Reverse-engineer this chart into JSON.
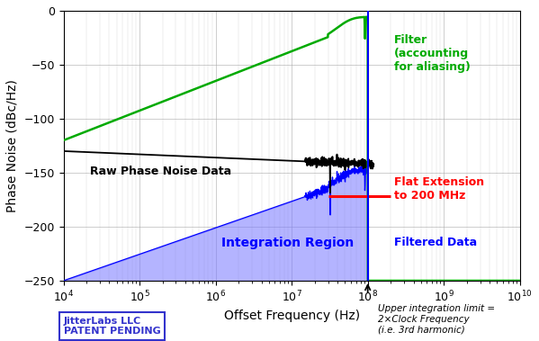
{
  "xlabel": "Offset Frequency (Hz)",
  "ylabel": "Phase Noise (dBc/Hz)",
  "xlim": [
    10000.0,
    10000000000.0
  ],
  "ylim": [
    -250,
    0
  ],
  "yticks": [
    0,
    -50,
    -100,
    -150,
    -200,
    -250
  ],
  "background_color": "#ffffff",
  "grid_color": "#aaaaaa",
  "filter_color": "#00aa00",
  "raw_color": "#000000",
  "filtered_color": "#0000ff",
  "flat_ext_color": "#ff0000",
  "fill_color": "#7777ff",
  "label_filter": "Filter\n(accounting\nfor aliasing)",
  "label_raw": "Raw Phase Noise Data",
  "label_flat": "Flat Extension\nto 200 MHz",
  "label_filtered": "Filtered Data",
  "label_integration": "Integration Region",
  "label_patent": "JitterLabs LLC\nPATENT PENDING",
  "label_upper": "Upper integration limit =\n2×Clock Frequency\n(i.e. 3rd harmonic)",
  "upper_limit_freq": 100000000.0,
  "flat_level": -172,
  "raw_start": -130,
  "filter_start": -120,
  "filter_end": -10
}
